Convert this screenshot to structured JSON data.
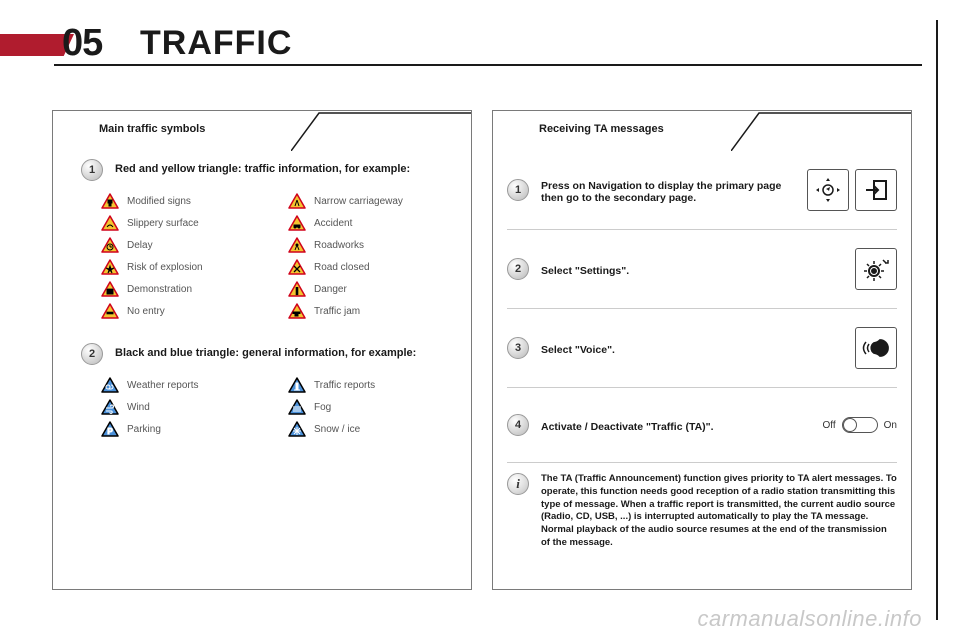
{
  "colors": {
    "accent_red": "#b01c2e",
    "rule": "#1a1a1a",
    "text_primary": "#1a1a1a",
    "text_muted": "#555555",
    "panel_border": "#7a7a7a",
    "badge_border": "#9a9a9a",
    "divider": "#cccccc",
    "watermark": "#c8c8c8",
    "triangle_red_fill": "#f4c430",
    "triangle_red_border": "#d0021b",
    "triangle_blue_fill": "#4a90d9",
    "triangle_blue_border": "#000000"
  },
  "chapter": {
    "number": "05",
    "title": "TRAFFIC"
  },
  "left_panel": {
    "header": "Main traffic symbols",
    "group_a": {
      "badge": "1",
      "title": "Red and yellow triangle: traffic information, for example:",
      "style": "red_yellow",
      "items": [
        {
          "label": "Modified signs",
          "glyph": "sign"
        },
        {
          "label": "Narrow carriageway",
          "glyph": "narrow"
        },
        {
          "label": "Slippery surface",
          "glyph": "skid"
        },
        {
          "label": "Accident",
          "glyph": "car"
        },
        {
          "label": "Delay",
          "glyph": "clock"
        },
        {
          "label": "Roadworks",
          "glyph": "works"
        },
        {
          "label": "Risk of explosion",
          "glyph": "explosion"
        },
        {
          "label": "Road closed",
          "glyph": "closed"
        },
        {
          "label": "Demonstration",
          "glyph": "demo"
        },
        {
          "label": "Danger",
          "glyph": "danger"
        },
        {
          "label": "No entry",
          "glyph": "noentry"
        },
        {
          "label": "Traffic jam",
          "glyph": "jam"
        }
      ]
    },
    "group_b": {
      "badge": "2",
      "title": "Black and blue triangle: general information, for example:",
      "style": "black_blue",
      "items": [
        {
          "label": "Weather reports",
          "glyph": "weather"
        },
        {
          "label": "Traffic reports",
          "glyph": "traffic"
        },
        {
          "label": "Wind",
          "glyph": "wind"
        },
        {
          "label": "Fog",
          "glyph": "fog"
        },
        {
          "label": "Parking",
          "glyph": "parking"
        },
        {
          "label": "Snow / ice",
          "glyph": "snow"
        }
      ]
    }
  },
  "right_panel": {
    "header": "Receiving TA messages",
    "steps": [
      {
        "badge": "1",
        "text": "Press on Navigation to display the primary page then go to the secondary page.",
        "icon": "nav"
      },
      {
        "badge": "2",
        "text": "Select \"Settings\".",
        "icon": "settings"
      },
      {
        "badge": "3",
        "text": "Select \"Voice\".",
        "icon": "voice"
      },
      {
        "badge": "4",
        "text": "Activate / Deactivate \"Traffic (TA)\".",
        "icon": "toggle"
      }
    ],
    "toggle": {
      "off_label": "Off",
      "on_label": "On",
      "state": "off"
    },
    "info": "The TA (Traffic Announcement) function gives priority to TA alert messages. To operate, this function needs good reception of a radio station transmitting this type of message. When a traffic report is transmitted, the current audio source (Radio, CD, USB, ...) is interrupted automatically to play the TA message. Normal playback of the audio source resumes at the end of the transmission of the message."
  },
  "watermark": "carmanualsonline.info"
}
